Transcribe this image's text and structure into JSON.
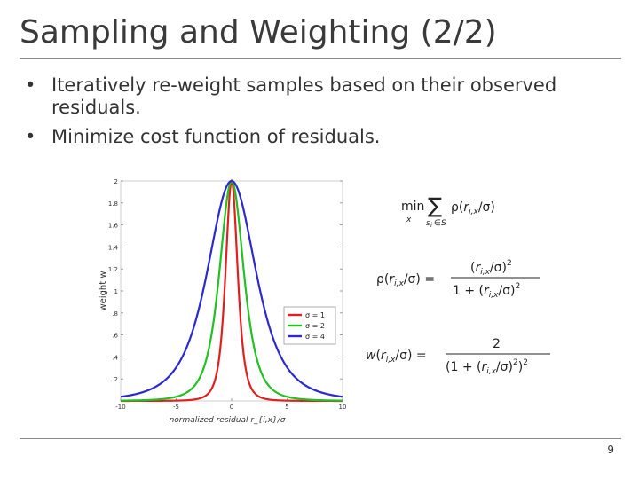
{
  "slide": {
    "title": "Sampling and Weighting (2/2)",
    "bullets": [
      "Iteratively re-weight samples based on their observed residuals.",
      "Minimize cost function of residuals."
    ],
    "bullet_marker": "•",
    "page_number": "9"
  },
  "equations": {
    "eq1": "min_x Σ_{s_i∈S} ρ(r_{i,x}/σ)",
    "eq2": "ρ(r_{i,x}/σ) = (r_{i,x}/σ)² / (1 + (r_{i,x}/σ)²)",
    "eq3": "w(r_{i,x}/σ) = 2 / (1 + (r_{i,x}/σ)²)²"
  },
  "chart_data": {
    "type": "line",
    "xlabel": "normalized residual r_{i,x}/σ",
    "ylabel": "weight w",
    "xlim": [
      -10,
      10
    ],
    "ylim": [
      0,
      2
    ],
    "xticks": [
      -10,
      -5,
      0,
      5,
      10
    ],
    "yticks": [
      0.2,
      0.4,
      0.6,
      0.8,
      1,
      1.2,
      1.4,
      1.6,
      1.8,
      2
    ],
    "ytick_labels": [
      ".2",
      ".4",
      ".6",
      ".8",
      "1",
      "1.2",
      "1.4",
      "1.6",
      "1.8",
      "2"
    ],
    "function": "w(r) = 2 / (1 + (r/σ)²)²",
    "series": [
      {
        "name": "σ = 1",
        "sigma": 1,
        "color": "#e0201e"
      },
      {
        "name": "σ = 2",
        "sigma": 2,
        "color": "#22c022"
      },
      {
        "name": "σ = 4",
        "sigma": 4,
        "color": "#2a2ad0"
      }
    ],
    "legend": "center-right",
    "grid": false
  }
}
